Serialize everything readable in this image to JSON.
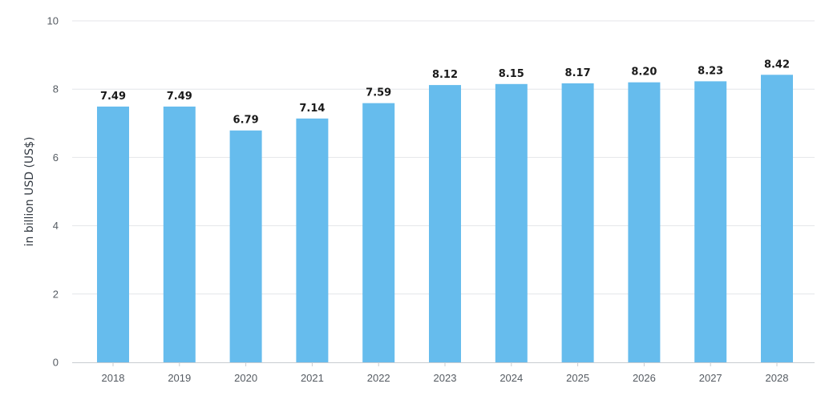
{
  "chart_data": {
    "type": "bar",
    "title": "",
    "xlabel": "",
    "ylabel": "in billion USD (US$)",
    "categories": [
      "2018",
      "2019",
      "2020",
      "2021",
      "2022",
      "2023",
      "2024",
      "2025",
      "2026",
      "2027",
      "2028"
    ],
    "values": [
      7.49,
      7.49,
      6.79,
      7.14,
      7.59,
      8.12,
      8.15,
      8.17,
      8.2,
      8.23,
      8.42
    ],
    "value_labels": [
      "7.49",
      "7.49",
      "6.79",
      "7.14",
      "7.59",
      "8.12",
      "8.15",
      "8.17",
      "8.20",
      "8.23",
      "8.42"
    ],
    "ylim": [
      0,
      10
    ],
    "yticks": [
      "0",
      "2",
      "4",
      "6",
      "8",
      "10"
    ],
    "grid": true,
    "legend": "none",
    "bar_color": "#66bced"
  }
}
